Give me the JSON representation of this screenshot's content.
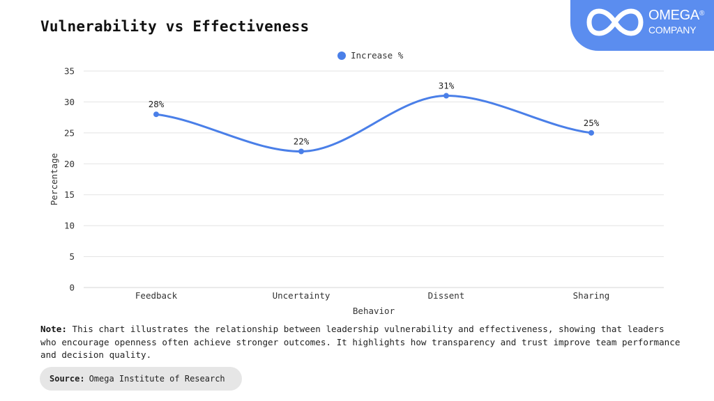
{
  "header": {
    "title": "Vulnerability vs Effectiveness"
  },
  "logo": {
    "name": "OMEGA",
    "registered": "®",
    "subtitle": "COMPANY",
    "icon": "infinity-icon"
  },
  "colors": {
    "series": "#4a7fe8",
    "brand": "#5b8def",
    "grid": "#e3e3e3"
  },
  "chart_data": {
    "type": "line",
    "title": "Vulnerability vs Effectiveness",
    "xlabel": "Behavior",
    "ylabel": "Percentage",
    "categories": [
      "Feedback",
      "Uncertainty",
      "Dissent",
      "Sharing"
    ],
    "series": [
      {
        "name": "Increase %",
        "values": [
          28,
          22,
          31,
          25
        ],
        "labels": [
          "28%",
          "22%",
          "31%",
          "25%"
        ]
      }
    ],
    "ylim": [
      0,
      35
    ],
    "yticks": [
      0,
      5,
      10,
      15,
      20,
      25,
      30,
      35
    ],
    "grid": true,
    "smooth": true,
    "legend": "top-center"
  },
  "footer": {
    "note_label": "Note:",
    "note_text": " This chart illustrates the relationship between leadership vulnerability and effectiveness, showing that leaders who encourage openness often achieve stronger outcomes. It highlights how transparency and trust improve team performance and decision quality.",
    "source_label": "Source:",
    "source_text": "Omega Institute of Research"
  }
}
